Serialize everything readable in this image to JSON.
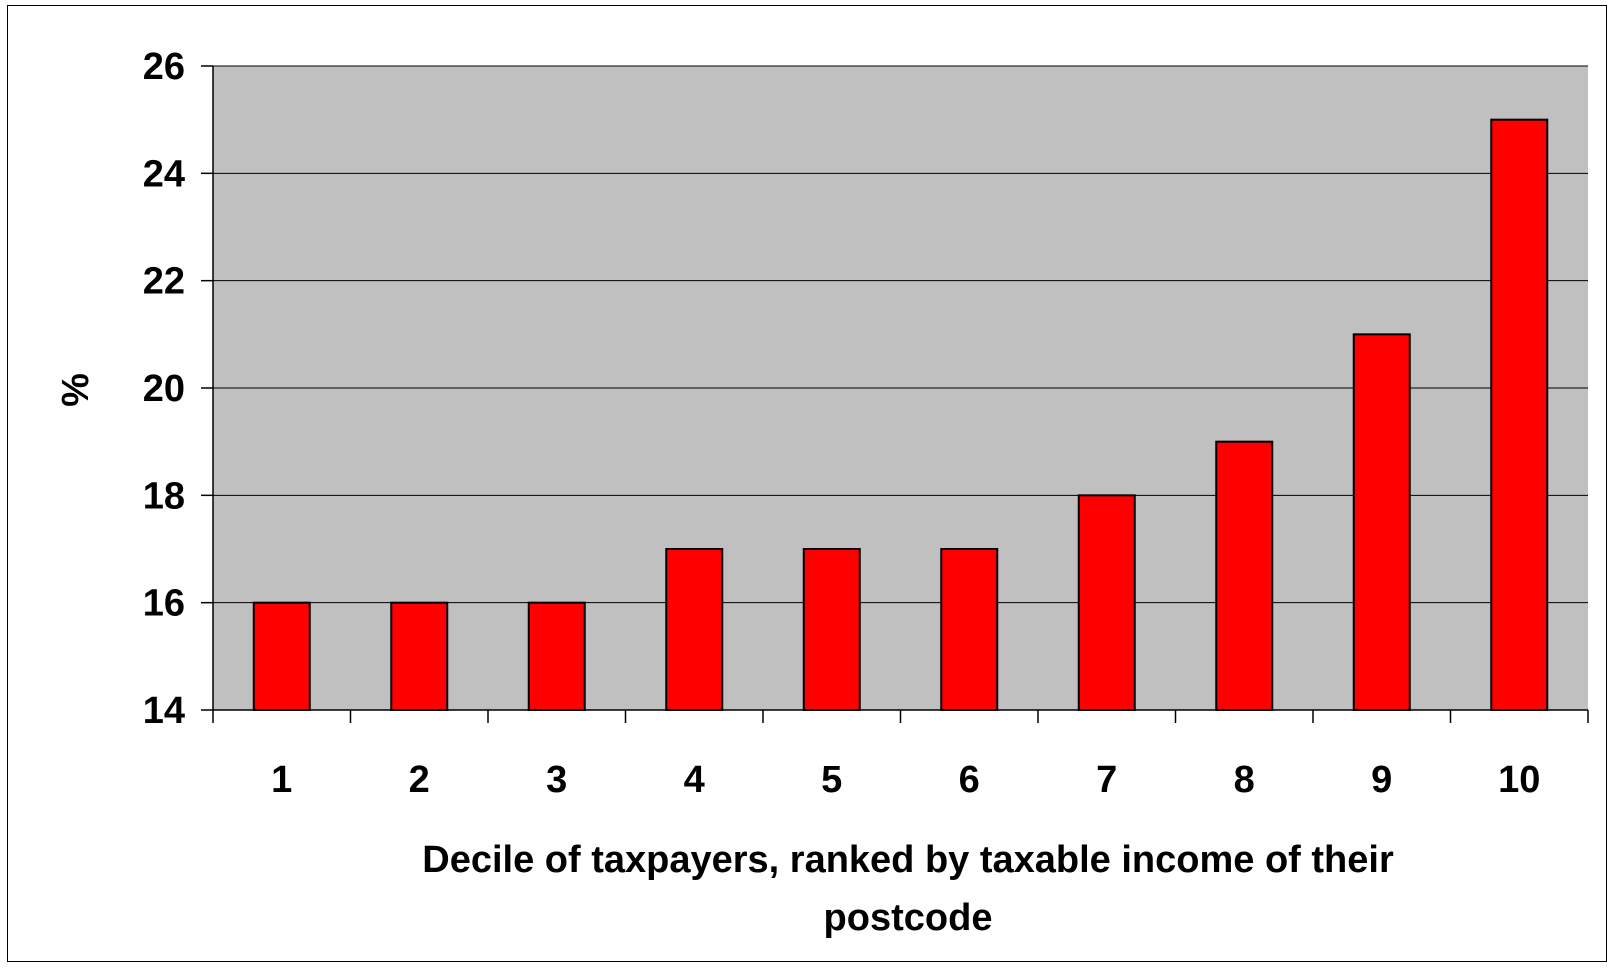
{
  "chart_data": {
    "type": "bar",
    "categories": [
      "1",
      "2",
      "3",
      "4",
      "5",
      "6",
      "7",
      "8",
      "9",
      "10"
    ],
    "values": [
      16,
      16,
      16,
      17,
      17,
      17,
      18,
      19,
      21,
      25
    ],
    "title": "",
    "xlabel_lines": [
      "Decile of taxpayers, ranked by taxable income of their",
      "postcode"
    ],
    "ylabel": "%",
    "ylim": [
      14,
      26
    ],
    "yticks": [
      14,
      16,
      18,
      20,
      22,
      24,
      26
    ],
    "grid": true,
    "legend": "none",
    "colors": {
      "bar_fill": "#ff0000",
      "bar_stroke": "#000000",
      "plot_background": "#c0c0c0",
      "gridline": "#000000"
    }
  }
}
